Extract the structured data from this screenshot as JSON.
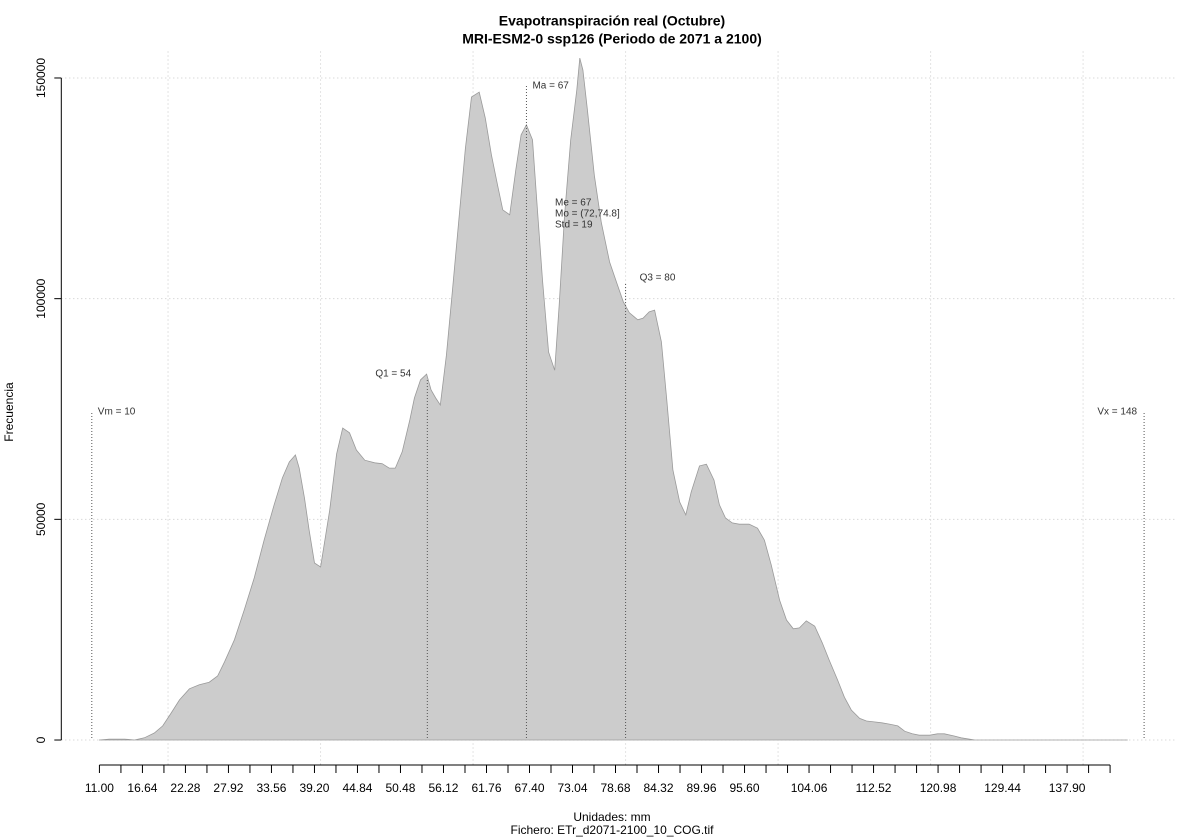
{
  "chart_data": {
    "type": "area",
    "title": "Evapotranspiración real (Octubre)",
    "subtitle": "MRI-ESM2-0 ssp126 (Periodo de 2071 a 2100)",
    "xlabel": "Unidades: mm",
    "caption": "Fichero: ETr_d2071-2100_10_COG.tif",
    "ylabel": "Frecuencia",
    "color": "#cccccc",
    "x": [
      11.0,
      12.3,
      14.3,
      15.6,
      16.9,
      18.2,
      19.3,
      20.4,
      21.5,
      22.8,
      24.1,
      25.4,
      26.5,
      27.4,
      28.7,
      30.0,
      31.3,
      32.6,
      33.9,
      35.0,
      35.9,
      36.7,
      37.2,
      37.9,
      38.5,
      39.2,
      40.0,
      41.2,
      42.1,
      42.9,
      43.8,
      44.7,
      45.8,
      47.1,
      48.1,
      49.0,
      49.8,
      50.7,
      51.7,
      52.3,
      53.1,
      53.9,
      54.5,
      55.1,
      55.7,
      56.5,
      57.3,
      58.2,
      59.0,
      59.8,
      60.8,
      61.6,
      62.4,
      63.2,
      63.9,
      64.8,
      65.6,
      66.3,
      67.0,
      67.8,
      68.4,
      69.1,
      69.9,
      70.7,
      71.3,
      72.0,
      72.8,
      73.6,
      74.0,
      74.4,
      75.0,
      75.9,
      76.8,
      77.9,
      78.8,
      79.7,
      80.5,
      81.6,
      82.3,
      83.1,
      83.8,
      84.7,
      85.4,
      86.2,
      87.1,
      87.9,
      88.6,
      89.7,
      90.6,
      91.6,
      92.3,
      93.1,
      94.0,
      94.9,
      96.2,
      97.3,
      98.2,
      99.1,
      100.2,
      101.1,
      102.0,
      102.8,
      103.7,
      104.8,
      105.8,
      106.7,
      107.8,
      108.7,
      109.6,
      110.7,
      111.6,
      112.6,
      113.6,
      114.6,
      115.7,
      116.6,
      117.6,
      118.5,
      119.9,
      120.9,
      121.8,
      123.1,
      124.0,
      125.8,
      129.0,
      135.6,
      145.8
    ],
    "values": [
      0,
      200,
      200,
      0,
      500,
      1600,
      3200,
      6100,
      9100,
      11600,
      12500,
      13100,
      14500,
      17700,
      22700,
      29500,
      36700,
      45300,
      53200,
      59400,
      63000,
      64600,
      61600,
      54800,
      47600,
      40100,
      39200,
      52100,
      64800,
      70700,
      69600,
      65700,
      63400,
      62800,
      62600,
      61600,
      61600,
      65300,
      72500,
      77500,
      81600,
      82900,
      79300,
      77500,
      75900,
      87200,
      102000,
      119000,
      134100,
      145700,
      146800,
      140900,
      132600,
      125800,
      120100,
      119000,
      129200,
      137100,
      139400,
      136000,
      121200,
      104200,
      87900,
      83800,
      98600,
      119000,
      136000,
      147300,
      154500,
      151800,
      142800,
      128000,
      117400,
      108300,
      103800,
      99300,
      96800,
      95200,
      95600,
      97000,
      97400,
      90200,
      77000,
      61200,
      53900,
      51000,
      56200,
      62100,
      62500,
      58900,
      53300,
      50300,
      49200,
      48900,
      48900,
      48000,
      45300,
      39700,
      31700,
      27200,
      25200,
      25400,
      27000,
      25800,
      22000,
      18100,
      13600,
      9700,
      6800,
      4900,
      4300,
      4100,
      3900,
      3600,
      3200,
      2000,
      1400,
      1100,
      1100,
      1400,
      1400,
      900,
      500,
      0,
      0,
      0,
      0
    ],
    "xlim": [
      6,
      152
    ],
    "ylim": [
      -6000,
      156000
    ],
    "xticks": [
      {
        "value": 11,
        "label": "11.00"
      },
      16.64,
      22.28,
      27.92,
      33.56,
      {
        "value": 39.2,
        "label": "39.20"
      },
      44.84,
      50.48,
      56.12,
      61.76,
      {
        "value": 67.4,
        "label": "67.40"
      },
      73.04,
      78.68,
      84.32,
      89.96,
      {
        "value": 95.6,
        "label": "95.60"
      },
      104.06,
      112.52,
      120.98,
      129.44,
      {
        "value": 137.9,
        "label": "137.90"
      }
    ],
    "xminorticks": [
      13.82,
      19.46,
      25.1,
      30.74,
      36.38,
      42.02,
      47.66,
      53.3,
      58.94,
      64.58,
      70.22,
      75.86,
      81.5,
      87.14,
      92.78,
      98.42,
      101.24,
      106.88,
      109.7,
      115.34,
      118.16,
      123.8,
      126.62,
      132.26,
      135.08,
      140.72,
      143.54
    ],
    "yticks": [
      0,
      50000,
      100000,
      150000
    ],
    "xgrid": [
      20,
      40,
      60,
      80,
      100,
      120,
      140
    ],
    "grid": true,
    "markers": [
      {
        "label": "Vm = 10",
        "value": 10
      },
      {
        "label": "Q1 = 54",
        "value": 54
      },
      {
        "label": "Ma = 67",
        "value": 67
      },
      {
        "label": "Q3 = 80",
        "value": 80
      },
      {
        "label": "Vx = 148",
        "value": 148
      }
    ],
    "stats": [
      "Me = 67",
      "Mo = (72,74.8]",
      "Std = 19"
    ]
  }
}
